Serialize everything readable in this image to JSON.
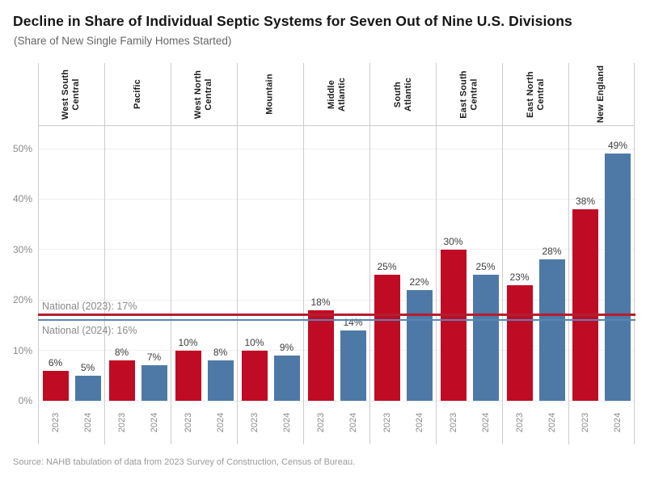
{
  "header": {
    "title": "Decline in Share of Individual Septic Systems for Seven Out of Nine U.S. Divisions",
    "subtitle": "(Share of New Single Family Homes Started)"
  },
  "footer": {
    "source": "Source: NAHB tabulation of data from 2023 Survey of Construction, Census of Bureau."
  },
  "colors": {
    "bar_2023": "#c00b24",
    "bar_2024": "#4e79a7",
    "ref_2023": "#b51e2e",
    "ref_2024": "#5b84b5",
    "gridline": "#efefef",
    "panel_border": "#cdcdcd",
    "axis_text": "#8a8a8a"
  },
  "chart_data": {
    "type": "bar",
    "title": "Decline in Share of Individual Septic Systems for Seven Out of Nine U.S. Divisions",
    "subtitle": "(Share of New Single Family Homes Started)",
    "categories": [
      "West South Central",
      "Pacific",
      "West North Central",
      "Mountain",
      "Middle Atlantic",
      "South Atlantic",
      "East South Central",
      "East North Central",
      "New England"
    ],
    "category_label_lines": [
      [
        "West South",
        "Central"
      ],
      [
        "Pacific"
      ],
      [
        "West North",
        "Central"
      ],
      [
        "Mountain"
      ],
      [
        "Middle",
        "Atlantic"
      ],
      [
        "South",
        "Atlantic"
      ],
      [
        "East South",
        "Central"
      ],
      [
        "East North",
        "Central"
      ],
      [
        "New England"
      ]
    ],
    "series": [
      {
        "name": "2023",
        "color": "#c00b24",
        "values": [
          6,
          8,
          10,
          10,
          18,
          25,
          30,
          23,
          38
        ]
      },
      {
        "name": "2024",
        "color": "#4e79a7",
        "values": [
          5,
          7,
          8,
          9,
          14,
          22,
          25,
          28,
          49
        ]
      }
    ],
    "value_suffix": "%",
    "y_ticks": [
      "0%",
      "10%",
      "20%",
      "30%",
      "40%",
      "50%"
    ],
    "y_tick_values": [
      0,
      10,
      20,
      30,
      40,
      50
    ],
    "ylim": [
      0,
      54.5
    ],
    "grid": true,
    "legend_position": "none",
    "reference_lines": [
      {
        "label": "National (2023): 17%",
        "value": 17,
        "color": "#b51e2e",
        "label_position": "above"
      },
      {
        "label": "National (2024): 16%",
        "value": 16,
        "color": "#5b84b5",
        "label_position": "below"
      }
    ]
  }
}
